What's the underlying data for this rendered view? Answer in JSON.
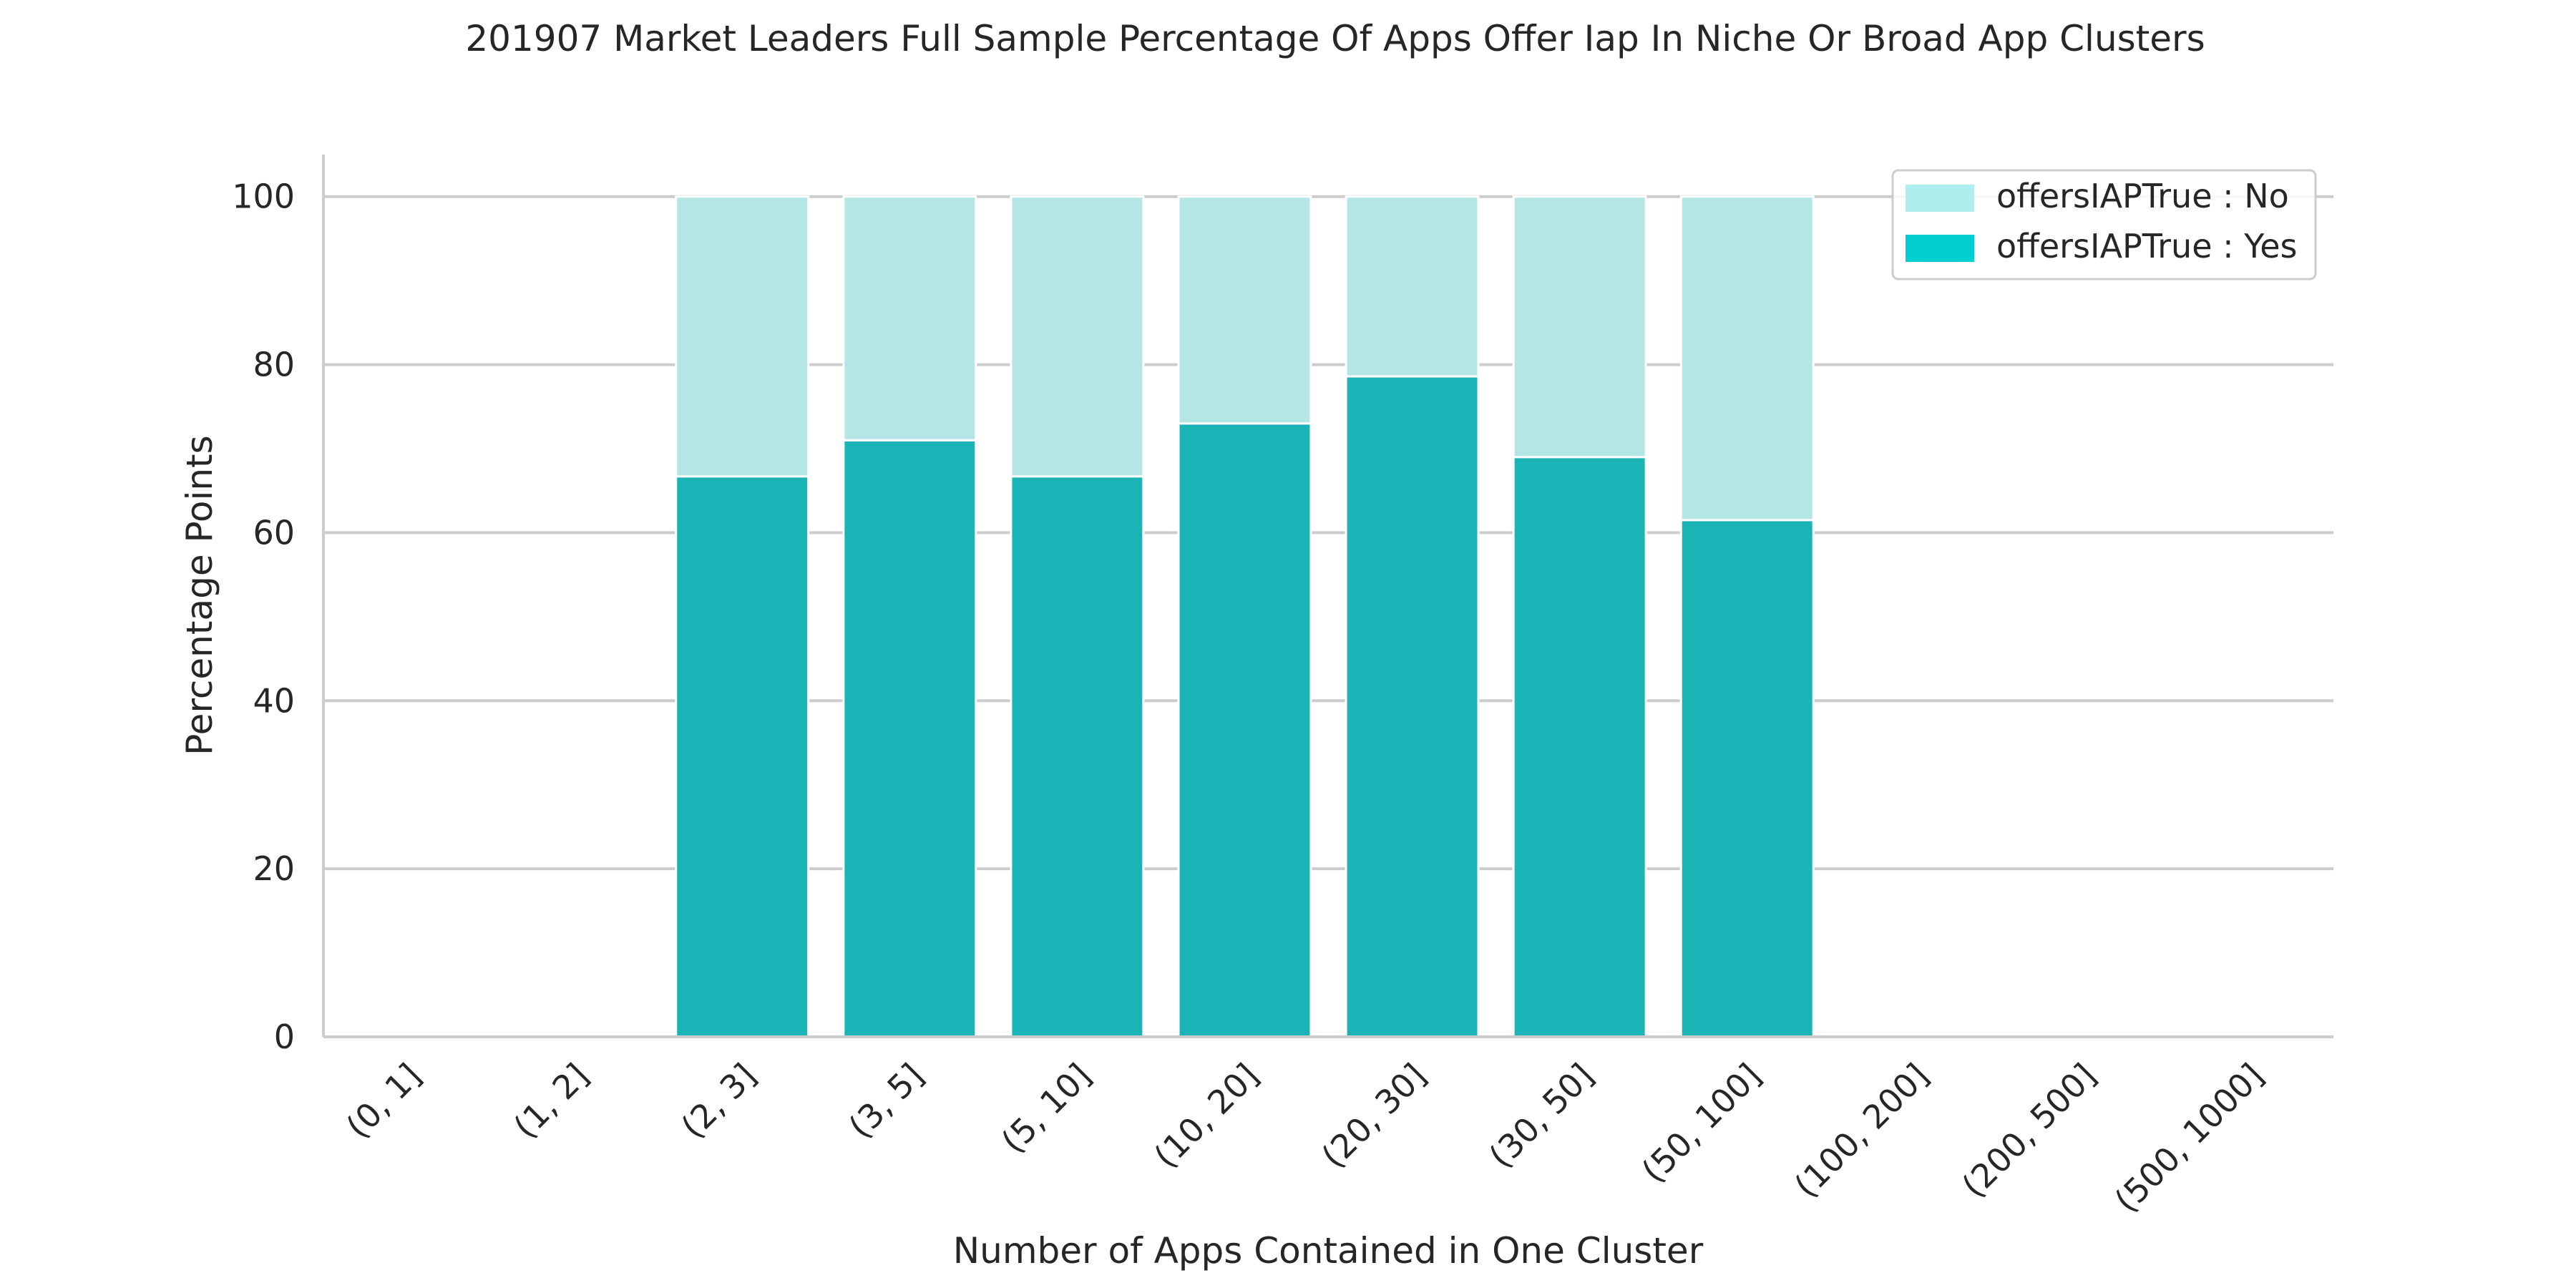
{
  "chart_data": {
    "type": "bar",
    "stacked": true,
    "title": "201907 Market Leaders Full Sample Percentage Of Apps Offer Iap In Niche Or Broad App Clusters",
    "xlabel": "Number of Apps Contained in One Cluster",
    "ylabel": "Percentage Points",
    "ylim": [
      0,
      105
    ],
    "yticks": [
      0,
      20,
      40,
      60,
      80,
      100
    ],
    "grid": "horizontal",
    "legend_position": "top-right",
    "categories": [
      "(0, 1]",
      "(1, 2]",
      "(2, 3]",
      "(3, 5]",
      "(5, 10]",
      "(10, 20]",
      "(20, 30]",
      "(30, 50]",
      "(50, 100]",
      "(100, 200]",
      "(200, 500]",
      "(500, 1000]"
    ],
    "series": [
      {
        "name": "offersIAPTrue : Yes",
        "color": "#1bb4b6",
        "legend_color": "#00ced1",
        "values": [
          0,
          0,
          66.7,
          71.0,
          66.7,
          73.0,
          78.6,
          69.0,
          61.5,
          0,
          0,
          0
        ]
      },
      {
        "name": "offersIAPTrue : No",
        "color": "#b4e6e6",
        "legend_color": "#afeeee",
        "values": [
          0,
          0,
          33.3,
          29.0,
          33.3,
          27.0,
          21.4,
          31.0,
          38.5,
          0,
          0,
          0
        ]
      }
    ],
    "legend_order": [
      "offersIAPTrue : No",
      "offersIAPTrue : Yes"
    ]
  }
}
